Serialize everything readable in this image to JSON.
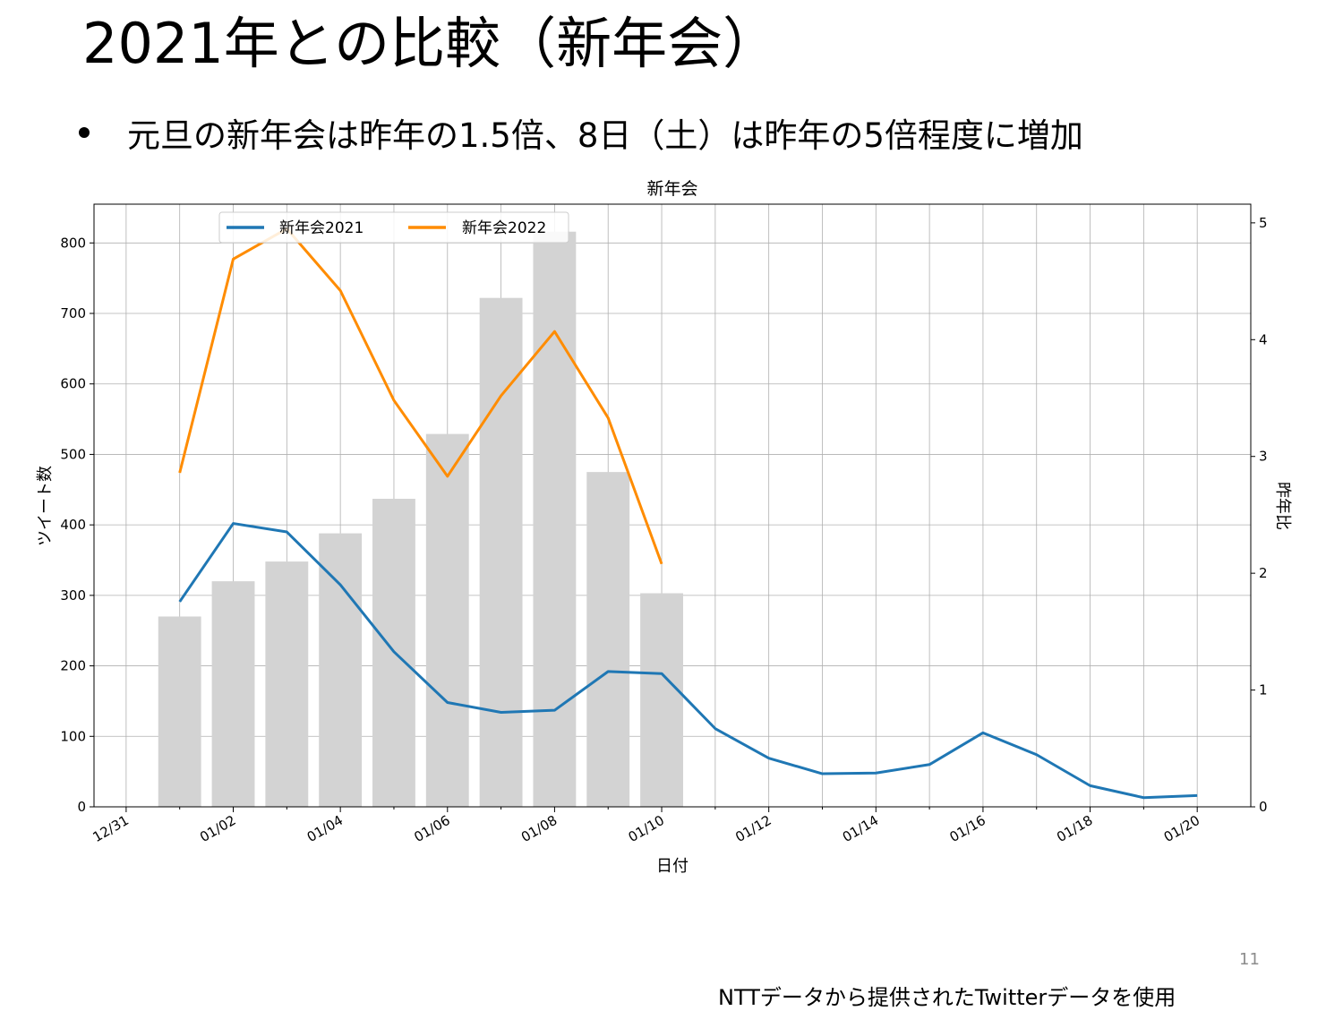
{
  "slide": {
    "title": "2021年との比較（新年会）",
    "bullet": "元旦の新年会は昨年の1.5倍、8日（土）は昨年の5倍程度に増加",
    "page_number": "11",
    "footer": "NTTデータから提供されたTwitterデータを使用"
  },
  "chart_data": {
    "type": "bar+line",
    "title": "新年会",
    "xlabel": "日付",
    "ylabel": "ツイート数",
    "y2label": "昨年比",
    "x_tick_labels": [
      "12/31",
      "01/02",
      "01/04",
      "01/06",
      "01/08",
      "01/10",
      "01/12",
      "01/14",
      "01/16",
      "01/18",
      "01/20"
    ],
    "x_ticks": [
      0,
      2,
      4,
      6,
      8,
      10,
      12,
      14,
      16,
      18,
      20
    ],
    "xlim": [
      -0.6,
      21.0
    ],
    "ylim": [
      0,
      855
    ],
    "y2lim": [
      0,
      5.16
    ],
    "y_ticks": [
      0,
      100,
      200,
      300,
      400,
      500,
      600,
      700,
      800
    ],
    "y2_ticks": [
      0,
      1,
      2,
      3,
      4,
      5
    ],
    "grid": true,
    "legend_position": "top-left",
    "bars": {
      "color": "#d3d3d3",
      "x": [
        1,
        2,
        3,
        4,
        5,
        6,
        7,
        8,
        9,
        10
      ],
      "values": [
        270,
        320,
        348,
        388,
        437,
        529,
        722,
        816,
        475,
        303
      ]
    },
    "series": [
      {
        "name": "新年会2021",
        "color": "#1f77b4",
        "axis": "left",
        "x": [
          1,
          2,
          3,
          4,
          5,
          6,
          7,
          8,
          9,
          10,
          11,
          12,
          13,
          14,
          15,
          16,
          17,
          18,
          19,
          20
        ],
        "values": [
          291,
          402,
          390,
          315,
          220,
          148,
          134,
          137,
          192,
          189,
          111,
          69,
          47,
          48,
          60,
          105,
          74,
          30,
          13,
          16
        ]
      },
      {
        "name": "新年会2022",
        "color": "#ff8c00",
        "axis": "right",
        "x": [
          1,
          2,
          3,
          4,
          5,
          6,
          7,
          8,
          9,
          10
        ],
        "values": [
          2.86,
          4.69,
          4.95,
          4.42,
          3.48,
          2.83,
          3.52,
          4.07,
          3.33,
          2.08
        ]
      }
    ]
  }
}
